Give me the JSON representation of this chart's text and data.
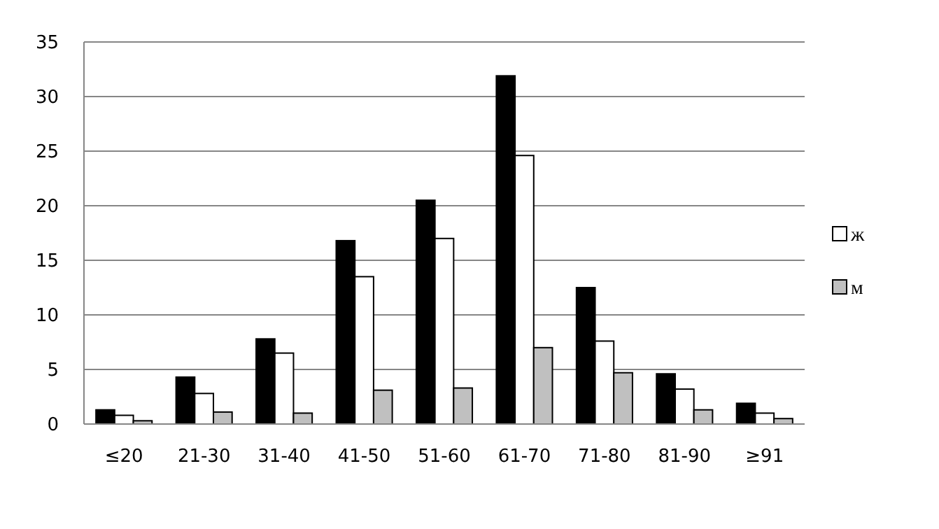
{
  "chart_data": {
    "type": "bar",
    "categories": [
      "≤20",
      "21-30",
      "31-40",
      "41-50",
      "51-60",
      "61-70",
      "71-80",
      "81-90",
      "≥91"
    ],
    "series": [
      {
        "color": "#000000",
        "values": [
          1.3,
          4.3,
          7.8,
          16.8,
          20.5,
          31.9,
          12.5,
          4.6,
          1.9
        ]
      },
      {
        "name": "ж",
        "color": "#ffffff",
        "values": [
          0.8,
          2.8,
          6.5,
          13.5,
          17.0,
          24.6,
          7.6,
          3.2,
          1.0
        ]
      },
      {
        "name": "м",
        "color": "#c0c0c0",
        "values": [
          0.3,
          1.1,
          1.0,
          3.1,
          3.3,
          7.0,
          4.7,
          1.3,
          0.5
        ]
      }
    ],
    "ylim": [
      0,
      35
    ],
    "yticks": [
      0,
      5,
      10,
      15,
      20,
      25,
      30,
      35
    ],
    "grid": "y",
    "legend": "right"
  }
}
